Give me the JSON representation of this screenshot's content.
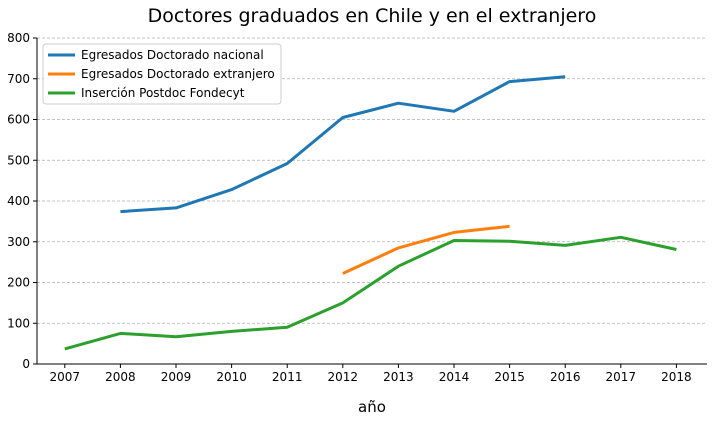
{
  "chart_data": {
    "type": "line",
    "title": "Doctores graduados en Chile y en el extranjero",
    "xlabel": "año",
    "ylabel": "",
    "x": [
      2007,
      2008,
      2009,
      2010,
      2011,
      2012,
      2013,
      2014,
      2015,
      2016,
      2017,
      2018
    ],
    "xlim": [
      2006.5,
      2018.55
    ],
    "ylim": [
      0,
      800
    ],
    "yticks": [
      0,
      100,
      200,
      300,
      400,
      500,
      600,
      700,
      800
    ],
    "grid": "horizontal dashed",
    "legend_position": "top-left",
    "series": [
      {
        "name": "Egresados Doctorado nacional",
        "color": "#1f77b4",
        "x": [
          2008,
          2009,
          2010,
          2011,
          2012,
          2013,
          2014,
          2015,
          2016
        ],
        "values": [
          374,
          383,
          428,
          492,
          605,
          640,
          620,
          693,
          705
        ]
      },
      {
        "name": "Egresados Doctorado extranjero",
        "color": "#ff7f0e",
        "x": [
          2012,
          2013,
          2014,
          2015
        ],
        "values": [
          222,
          285,
          323,
          338
        ]
      },
      {
        "name": "Inserción Postdoc Fondecyt",
        "color": "#2ca02c",
        "x": [
          2007,
          2008,
          2009,
          2010,
          2011,
          2012,
          2013,
          2014,
          2015,
          2016,
          2017,
          2018
        ],
        "values": [
          37,
          75,
          67,
          80,
          90,
          150,
          240,
          303,
          301,
          291,
          311,
          281
        ]
      }
    ]
  }
}
